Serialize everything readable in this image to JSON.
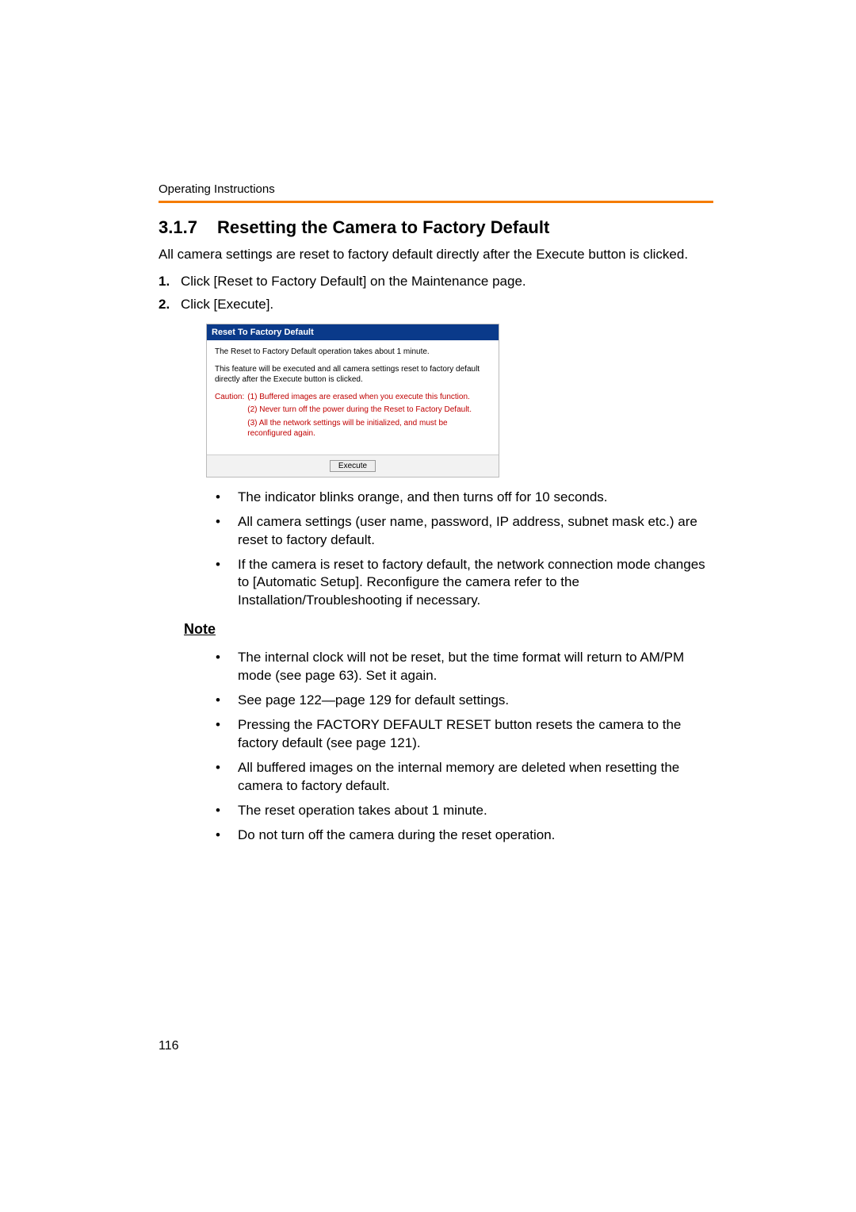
{
  "header": {
    "label": "Operating Instructions"
  },
  "section": {
    "number": "3.1.7",
    "title": "Resetting the Camera to Factory Default",
    "intro": "All camera settings are reset to factory default directly after the Execute button is clicked."
  },
  "steps": [
    "Click [Reset to Factory Default] on the Maintenance page.",
    "Click [Execute]."
  ],
  "screenshot": {
    "title": "Reset To Factory Default",
    "line1": "The Reset to Factory Default operation takes about 1 minute.",
    "line2": "This feature will be executed and all camera settings reset to factory default directly after the Execute button is clicked.",
    "caution_label": "Caution:",
    "caution_items": [
      "(1) Buffered images are erased when you execute this function.",
      "(2) Never turn off the power during the Reset to Factory Default.",
      "(3) All the network settings will be initialized, and must be reconfigured again."
    ],
    "button": "Execute"
  },
  "after_bullets": [
    "The indicator blinks orange, and then turns off for 10 seconds.",
    "All camera settings (user name, password, IP address, subnet mask etc.) are reset to factory default.",
    "If the camera is reset to factory default, the network connection mode changes to [Automatic Setup]. Reconfigure the camera refer to the Installation/Troubleshooting if necessary."
  ],
  "note": {
    "heading": "Note",
    "bullets": [
      "The internal clock will not be reset, but the time format will return to AM/PM mode (see page 63). Set it again.",
      "See page 122—page 129 for default settings.",
      "Pressing the FACTORY DEFAULT RESET button resets the camera to the factory default (see page 121).",
      "All buffered images on the internal memory are deleted when resetting the camera to factory default.",
      "The reset operation takes about 1 minute.",
      "Do not turn off the camera during the reset operation."
    ]
  },
  "page_number": "116",
  "colors": {
    "rule": "#f57c00",
    "screenshot_title_bg": "#0a3a8a",
    "caution_text": "#c00000"
  }
}
